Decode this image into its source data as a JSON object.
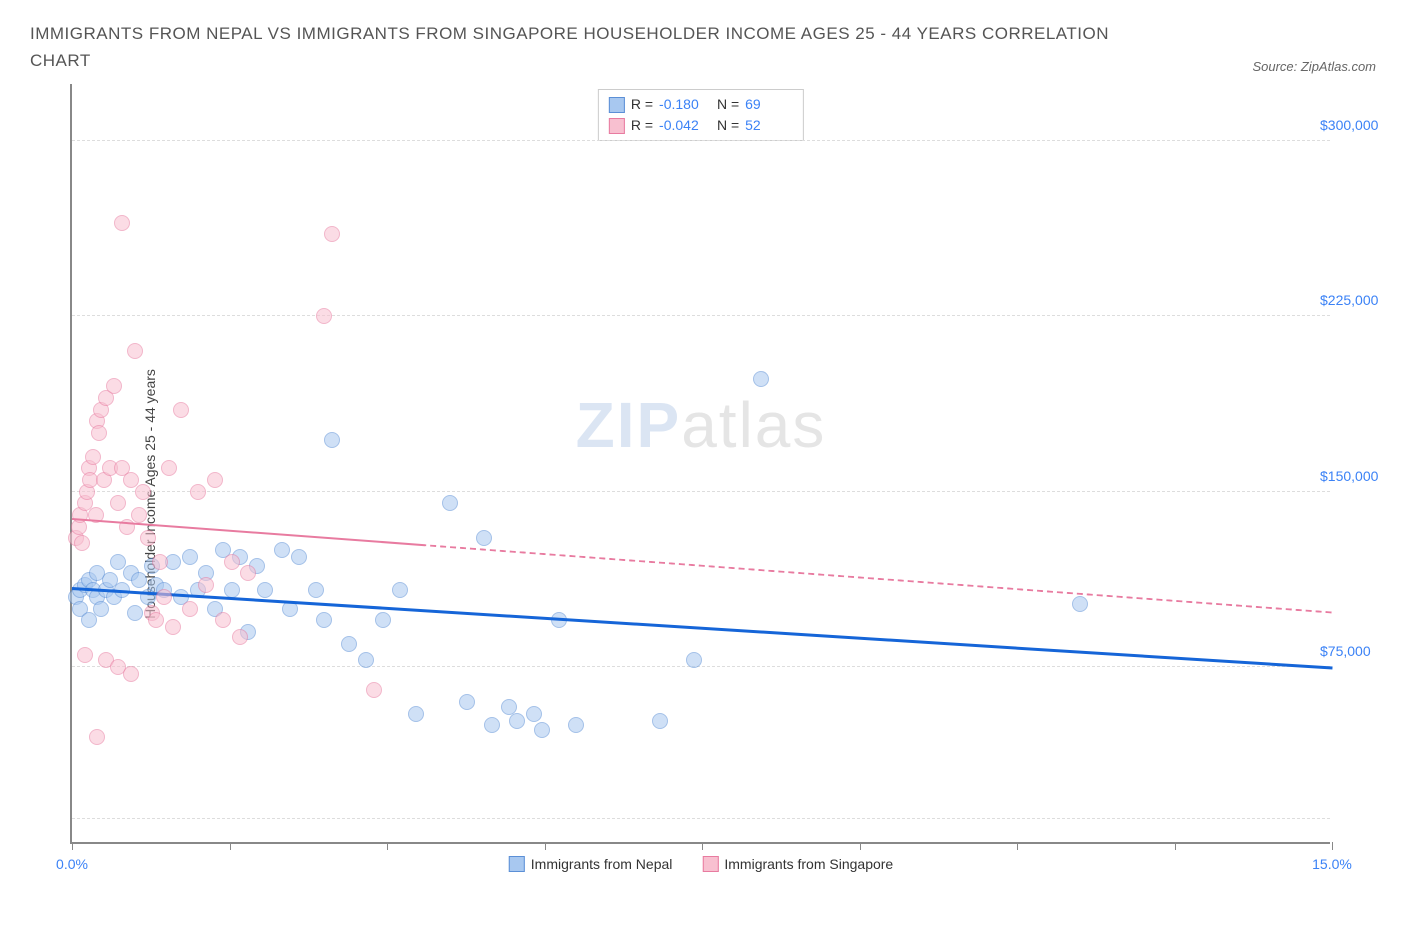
{
  "title": "IMMIGRANTS FROM NEPAL VS IMMIGRANTS FROM SINGAPORE HOUSEHOLDER INCOME AGES 25 - 44 YEARS CORRELATION CHART",
  "source": "Source: ZipAtlas.com",
  "watermark_bold": "ZIP",
  "watermark_light": "atlas",
  "chart": {
    "type": "scatter",
    "y_label": "Householder Income Ages 25 - 44 years",
    "background_color": "#ffffff",
    "grid_color": "#dddddd",
    "axis_color": "#888888",
    "xlim": [
      0,
      15
    ],
    "ylim": [
      0,
      325000
    ],
    "x_ticks": [
      0,
      1.875,
      3.75,
      5.625,
      7.5,
      9.375,
      11.25,
      13.125,
      15
    ],
    "x_tick_labels": {
      "0": "0.0%",
      "15": "15.0%"
    },
    "y_gridlines": [
      10000,
      75000,
      150000,
      225000,
      300000
    ],
    "y_tick_labels": {
      "75000": "$75,000",
      "150000": "$150,000",
      "225000": "$225,000",
      "300000": "$300,000"
    },
    "marker_radius": 8,
    "marker_opacity": 0.55,
    "series": [
      {
        "name": "Immigrants from Nepal",
        "color_fill": "#a8c8f0",
        "color_stroke": "#5b8fd6",
        "R": "-0.180",
        "N": "69",
        "trend": {
          "x1": 0,
          "y1": 108000,
          "x2": 15,
          "y2": 74000,
          "color": "#1565d8",
          "width": 2.5,
          "dash": false
        },
        "points": [
          [
            0.05,
            105000
          ],
          [
            0.1,
            100000
          ],
          [
            0.1,
            108000
          ],
          [
            0.15,
            110000
          ],
          [
            0.2,
            95000
          ],
          [
            0.2,
            112000
          ],
          [
            0.25,
            108000
          ],
          [
            0.3,
            105000
          ],
          [
            0.3,
            115000
          ],
          [
            0.35,
            100000
          ],
          [
            0.4,
            108000
          ],
          [
            0.45,
            112000
          ],
          [
            0.5,
            105000
          ],
          [
            0.55,
            120000
          ],
          [
            0.6,
            108000
          ],
          [
            0.7,
            115000
          ],
          [
            0.75,
            98000
          ],
          [
            0.8,
            112000
          ],
          [
            0.9,
            105000
          ],
          [
            0.95,
            118000
          ],
          [
            1.0,
            110000
          ],
          [
            1.1,
            108000
          ],
          [
            1.2,
            120000
          ],
          [
            1.3,
            105000
          ],
          [
            1.4,
            122000
          ],
          [
            1.5,
            108000
          ],
          [
            1.6,
            115000
          ],
          [
            1.7,
            100000
          ],
          [
            1.8,
            125000
          ],
          [
            1.9,
            108000
          ],
          [
            2.0,
            122000
          ],
          [
            2.1,
            90000
          ],
          [
            2.2,
            118000
          ],
          [
            2.3,
            108000
          ],
          [
            2.5,
            125000
          ],
          [
            2.6,
            100000
          ],
          [
            2.7,
            122000
          ],
          [
            2.9,
            108000
          ],
          [
            3.0,
            95000
          ],
          [
            3.1,
            172000
          ],
          [
            3.3,
            85000
          ],
          [
            3.5,
            78000
          ],
          [
            3.7,
            95000
          ],
          [
            3.9,
            108000
          ],
          [
            4.1,
            55000
          ],
          [
            4.5,
            145000
          ],
          [
            4.7,
            60000
          ],
          [
            4.9,
            130000
          ],
          [
            5.0,
            50000
          ],
          [
            5.2,
            58000
          ],
          [
            5.3,
            52000
          ],
          [
            5.5,
            55000
          ],
          [
            5.6,
            48000
          ],
          [
            5.8,
            95000
          ],
          [
            6.0,
            50000
          ],
          [
            7.0,
            52000
          ],
          [
            7.4,
            78000
          ],
          [
            8.2,
            198000
          ],
          [
            12.0,
            102000
          ]
        ]
      },
      {
        "name": "Immigrants from Singapore",
        "color_fill": "#f8c0d0",
        "color_stroke": "#e87ba0",
        "R": "-0.042",
        "N": "52",
        "trend": {
          "x1": 0,
          "y1": 138000,
          "x2": 15,
          "y2": 98000,
          "color": "#e87ba0",
          "width": 2,
          "dash": true,
          "dash_until_x": 4.2
        },
        "points": [
          [
            0.05,
            130000
          ],
          [
            0.08,
            135000
          ],
          [
            0.1,
            140000
          ],
          [
            0.12,
            128000
          ],
          [
            0.15,
            145000
          ],
          [
            0.18,
            150000
          ],
          [
            0.2,
            160000
          ],
          [
            0.22,
            155000
          ],
          [
            0.25,
            165000
          ],
          [
            0.28,
            140000
          ],
          [
            0.3,
            180000
          ],
          [
            0.32,
            175000
          ],
          [
            0.35,
            185000
          ],
          [
            0.38,
            155000
          ],
          [
            0.4,
            190000
          ],
          [
            0.45,
            160000
          ],
          [
            0.5,
            195000
          ],
          [
            0.55,
            145000
          ],
          [
            0.6,
            160000
          ],
          [
            0.65,
            135000
          ],
          [
            0.7,
            155000
          ],
          [
            0.75,
            210000
          ],
          [
            0.8,
            140000
          ],
          [
            0.85,
            150000
          ],
          [
            0.9,
            130000
          ],
          [
            0.95,
            98000
          ],
          [
            1.0,
            95000
          ],
          [
            1.05,
            120000
          ],
          [
            1.1,
            105000
          ],
          [
            1.15,
            160000
          ],
          [
            1.2,
            92000
          ],
          [
            1.3,
            185000
          ],
          [
            1.4,
            100000
          ],
          [
            1.5,
            150000
          ],
          [
            1.6,
            110000
          ],
          [
            1.7,
            155000
          ],
          [
            1.8,
            95000
          ],
          [
            1.9,
            120000
          ],
          [
            2.0,
            88000
          ],
          [
            2.1,
            115000
          ],
          [
            0.6,
            265000
          ],
          [
            0.15,
            80000
          ],
          [
            0.4,
            78000
          ],
          [
            0.55,
            75000
          ],
          [
            0.7,
            72000
          ],
          [
            0.3,
            45000
          ],
          [
            3.1,
            260000
          ],
          [
            3.0,
            225000
          ],
          [
            3.6,
            65000
          ]
        ]
      }
    ],
    "legend_bottom": [
      {
        "label": "Immigrants from Nepal",
        "fill": "#a8c8f0",
        "stroke": "#5b8fd6"
      },
      {
        "label": "Immigrants from Singapore",
        "fill": "#f8c0d0",
        "stroke": "#e87ba0"
      }
    ]
  }
}
